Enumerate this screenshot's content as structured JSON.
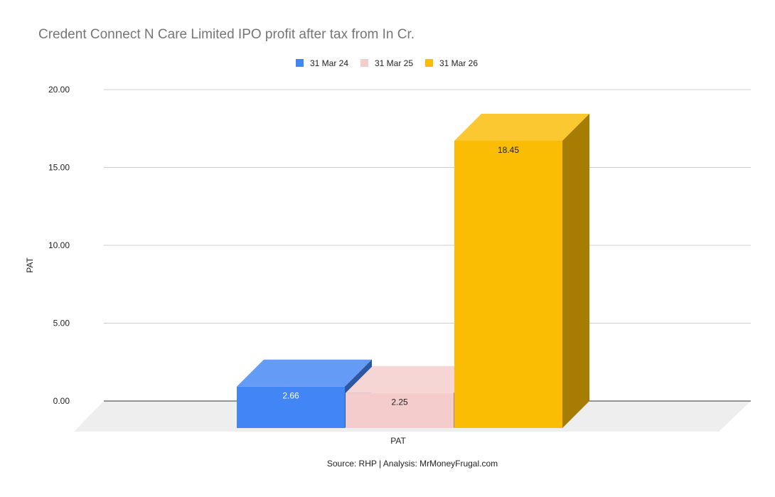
{
  "chart_data": {
    "type": "bar",
    "title": "Credent Connect N Care Limited IPO profit after tax from In Cr.",
    "categories": [
      "PAT"
    ],
    "series": [
      {
        "name": "31 Mar 24",
        "values": [
          2.66
        ],
        "color": "#4285F4"
      },
      {
        "name": "31 Mar 25",
        "values": [
          2.25
        ],
        "color": "#F4CCCC"
      },
      {
        "name": "31 Mar 26",
        "values": [
          18.45
        ],
        "color": "#FBBC04"
      }
    ],
    "xlabel": "PAT",
    "ylabel": "PAT",
    "ylim": [
      0,
      20
    ],
    "yticks": [
      "0.00",
      "5.00",
      "10.00",
      "15.00",
      "20.00"
    ],
    "data_labels": [
      "2.66",
      "2.25",
      "18.45"
    ],
    "grid": true,
    "legend_position": "top",
    "style_3d": true,
    "floor_color": "#EEEEEE",
    "source": "Source: RHP | Analysis: MrMoneyFrugal.com"
  }
}
